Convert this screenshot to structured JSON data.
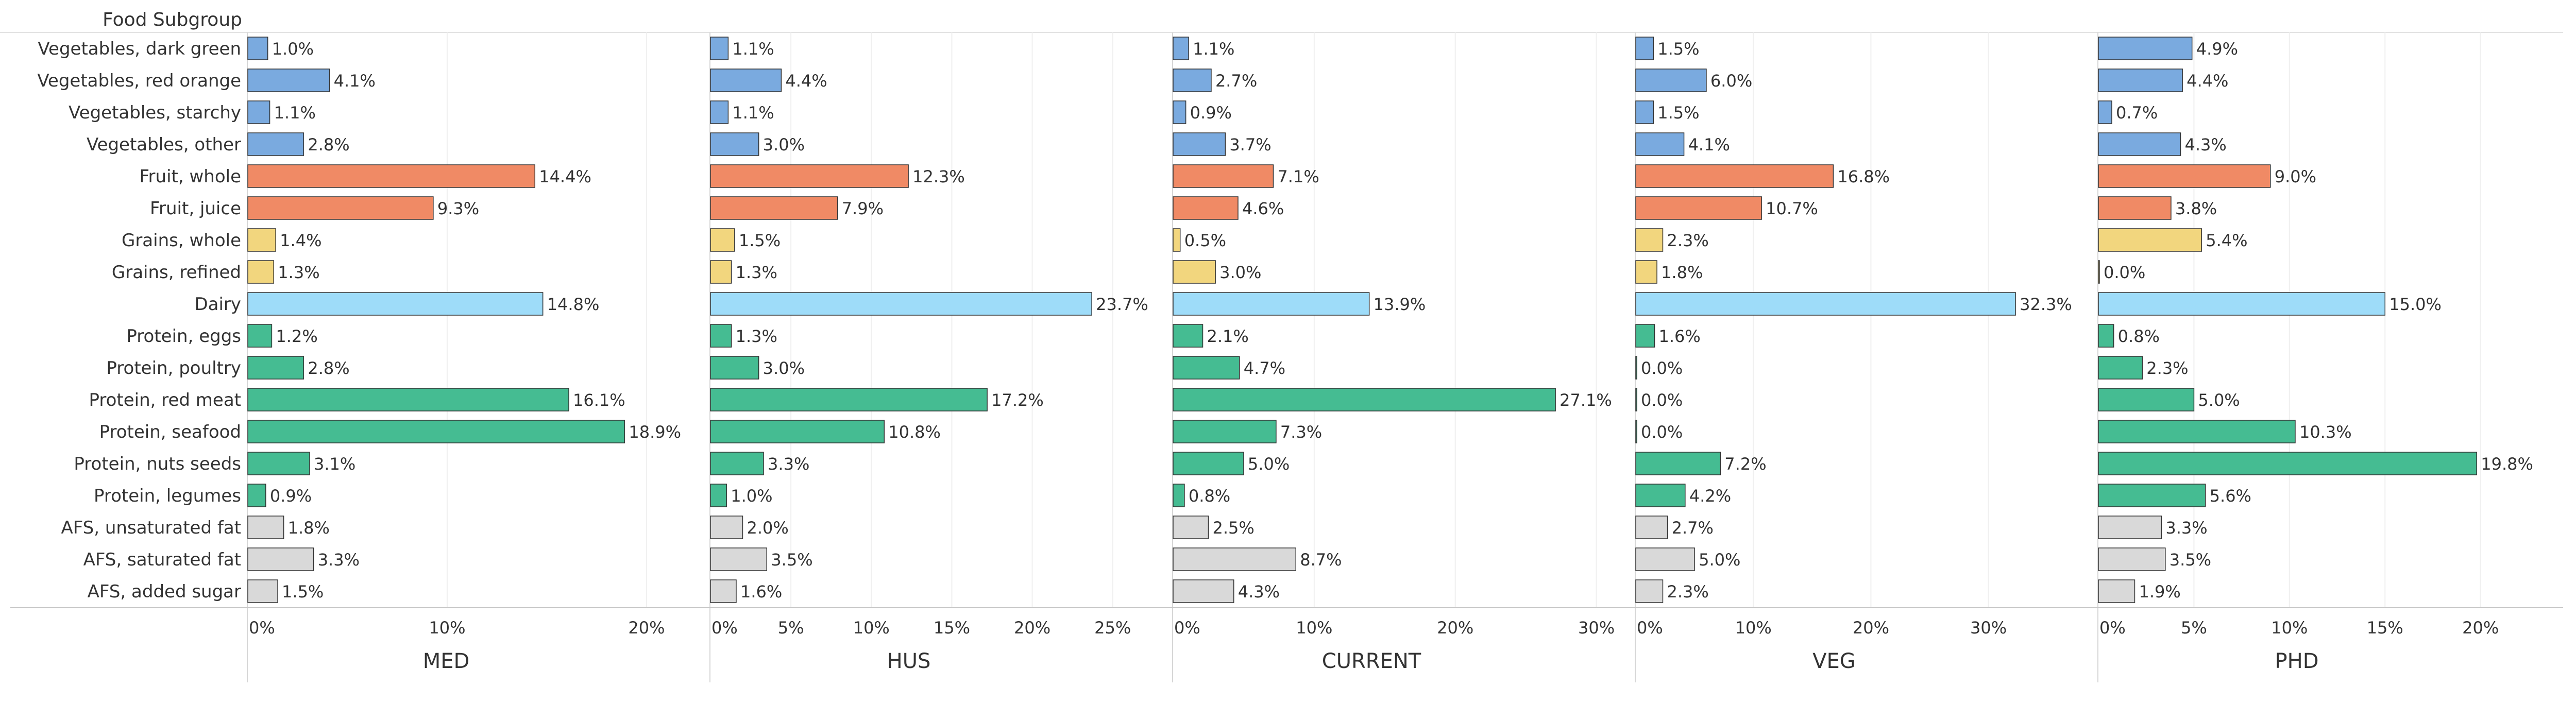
{
  "chart_data": {
    "type": "bar",
    "orientation": "horizontal",
    "row_header": "Food Subgroup",
    "categories": [
      "Vegetables, dark green",
      "Vegetables, red orange",
      "Vegetables, starchy",
      "Vegetables, other",
      "Fruit, whole",
      "Fruit, juice",
      "Grains, whole",
      "Grains, refined",
      "Dairy",
      "Protein, eggs",
      "Protein, poultry",
      "Protein, red meat",
      "Protein, seafood",
      "Protein, nuts seeds",
      "Protein, legumes",
      "AFS, unsaturated fat",
      "AFS, saturated fat",
      "AFS, added sugar"
    ],
    "category_colors": [
      "#7aaadf",
      "#7aaadf",
      "#7aaadf",
      "#7aaadf",
      "#f08a65",
      "#f08a65",
      "#f2d67e",
      "#f2d67e",
      "#9edcf9",
      "#45bc92",
      "#45bc92",
      "#45bc92",
      "#45bc92",
      "#45bc92",
      "#45bc92",
      "#d9d9d9",
      "#d9d9d9",
      "#d9d9d9"
    ],
    "value_suffix": "%",
    "grid": true,
    "panels": [
      {
        "name": "MED",
        "xlim": [
          0,
          23
        ],
        "ticks": [
          0,
          10,
          20
        ],
        "tick_labels": [
          "0%",
          "10%",
          "20%"
        ],
        "values": [
          1.0,
          4.1,
          1.1,
          2.8,
          14.4,
          9.3,
          1.4,
          1.3,
          14.8,
          1.2,
          2.8,
          16.1,
          18.9,
          3.1,
          0.9,
          1.8,
          3.3,
          1.5
        ],
        "value_labels": [
          "1.0%",
          "4.1%",
          "1.1%",
          "2.8%",
          "14.4%",
          "9.3%",
          "1.4%",
          "1.3%",
          "14.8%",
          "1.2%",
          "2.8%",
          "16.1%",
          "18.9%",
          "3.1%",
          "0.9%",
          "1.8%",
          "3.3%",
          "1.5%"
        ]
      },
      {
        "name": "HUS",
        "xlim": [
          0,
          28.5
        ],
        "ticks": [
          0,
          5,
          10,
          15,
          20,
          25
        ],
        "tick_labels": [
          "0%",
          "5%",
          "10%",
          "15%",
          "20%",
          "25%"
        ],
        "values": [
          1.1,
          4.4,
          1.1,
          3.0,
          12.3,
          7.9,
          1.5,
          1.3,
          23.7,
          1.3,
          3.0,
          17.2,
          10.8,
          3.3,
          1.0,
          2.0,
          3.5,
          1.6
        ],
        "value_labels": [
          "1.1%",
          "4.4%",
          "1.1%",
          "3.0%",
          "12.3%",
          "7.9%",
          "1.5%",
          "1.3%",
          "23.7%",
          "1.3%",
          "3.0%",
          "17.2%",
          "10.8%",
          "3.3%",
          "1.0%",
          "2.0%",
          "3.5%",
          "1.6%"
        ]
      },
      {
        "name": "CURRENT",
        "xlim": [
          0,
          32.5
        ],
        "ticks": [
          0,
          10,
          20,
          30
        ],
        "tick_labels": [
          "0%",
          "10%",
          "20%",
          "30%"
        ],
        "values": [
          1.1,
          2.7,
          0.9,
          3.7,
          7.1,
          4.6,
          0.5,
          3.0,
          13.9,
          2.1,
          4.7,
          27.1,
          7.3,
          5.0,
          0.8,
          2.5,
          8.7,
          4.3
        ],
        "value_labels": [
          "1.1%",
          "2.7%",
          "0.9%",
          "3.7%",
          "7.1%",
          "4.6%",
          "0.5%",
          "3.0%",
          "13.9%",
          "2.1%",
          "4.7%",
          "27.1%",
          "7.3%",
          "5.0%",
          "0.8%",
          "2.5%",
          "8.7%",
          "4.3%"
        ]
      },
      {
        "name": "VEG",
        "xlim": [
          0,
          39
        ],
        "ticks": [
          0,
          10,
          20,
          30
        ],
        "tick_labels": [
          "0%",
          "10%",
          "20%",
          "30%"
        ],
        "values": [
          1.5,
          6.0,
          1.5,
          4.1,
          16.8,
          10.7,
          2.3,
          1.8,
          32.3,
          1.6,
          0.0,
          0.0,
          0.0,
          7.2,
          4.2,
          2.7,
          5.0,
          2.3
        ],
        "value_labels": [
          "1.5%",
          "6.0%",
          "1.5%",
          "4.1%",
          "16.8%",
          "10.7%",
          "2.3%",
          "1.8%",
          "32.3%",
          "1.6%",
          "0.0%",
          "0.0%",
          "0.0%",
          "7.2%",
          "4.2%",
          "2.7%",
          "5.0%",
          "2.3%"
        ]
      },
      {
        "name": "PHD",
        "xlim": [
          0,
          24
        ],
        "ticks": [
          0,
          5,
          10,
          15,
          20
        ],
        "tick_labels": [
          "0%",
          "5%",
          "10%",
          "15%",
          "20%"
        ],
        "values": [
          4.9,
          4.4,
          0.7,
          4.3,
          9.0,
          3.8,
          5.4,
          0.0,
          15.0,
          0.8,
          2.3,
          5.0,
          10.3,
          19.8,
          5.6,
          3.3,
          3.5,
          1.9
        ],
        "value_labels": [
          "4.9%",
          "4.4%",
          "0.7%",
          "4.3%",
          "9.0%",
          "3.8%",
          "5.4%",
          "0.0%",
          "15.0%",
          "0.8%",
          "2.3%",
          "5.0%",
          "10.3%",
          "19.8%",
          "5.6%",
          "3.3%",
          "3.5%",
          "1.9%"
        ]
      }
    ]
  }
}
